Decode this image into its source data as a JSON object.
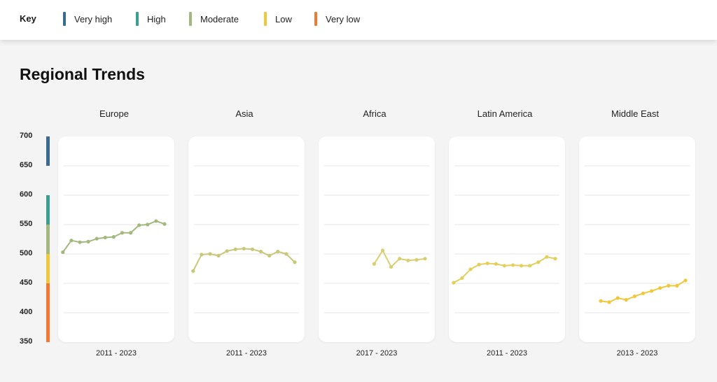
{
  "key": {
    "title": "Key",
    "levels": [
      {
        "label": "Very high",
        "color": "#3a6b8f"
      },
      {
        "label": "High",
        "color": "#3a9e93"
      },
      {
        "label": "Moderate",
        "color": "#a3b87f"
      },
      {
        "label": "Low",
        "color": "#f0c83c"
      },
      {
        "label": "Very low",
        "color": "#f07a32"
      }
    ]
  },
  "page": {
    "title": "Regional Trends"
  },
  "chart_data": {
    "type": "line",
    "ylim": [
      350,
      700
    ],
    "yticks": [
      700,
      650,
      600,
      550,
      500,
      450,
      400,
      350
    ],
    "grid": true,
    "color_bands": [
      {
        "level": "Very high",
        "from": 650,
        "to": 700,
        "color": "#3a6b8f"
      },
      {
        "level": "High",
        "from": 550,
        "to": 600,
        "color": "#3a9e93"
      },
      {
        "level": "Moderate",
        "from": 500,
        "to": 550,
        "color": "#a3b87f"
      },
      {
        "level": "Low",
        "from": 450,
        "to": 500,
        "color": "#f0c83c"
      },
      {
        "level": "Very low",
        "from": 350,
        "to": 450,
        "color": "#f07a32"
      }
    ],
    "panels": [
      {
        "region": "Europe",
        "period": "2011 - 2023",
        "color": "#a3b87f",
        "values": [
          503,
          523,
          520,
          521,
          526,
          528,
          529,
          536,
          536,
          549,
          550,
          556,
          551
        ]
      },
      {
        "region": "Asia",
        "period": "2011 - 2023",
        "color": "#c9c77a",
        "values": [
          471,
          499,
          500,
          497,
          505,
          508,
          509,
          508,
          504,
          497,
          504,
          500,
          486
        ]
      },
      {
        "region": "Africa",
        "period": "2017 - 2023",
        "color": "#d7cf72",
        "values": [
          483,
          506,
          478,
          492,
          489,
          490,
          492
        ]
      },
      {
        "region": "Latin America",
        "period": "2011 - 2023",
        "color": "#e3cf5e",
        "values": [
          451,
          459,
          474,
          482,
          484,
          483,
          480,
          481,
          480,
          480,
          486,
          495,
          492
        ]
      },
      {
        "region": "Middle East",
        "period": "2013 - 2023",
        "color": "#f0c83c",
        "values": [
          420,
          418,
          425,
          422,
          428,
          433,
          437,
          442,
          446,
          446,
          455
        ]
      }
    ]
  }
}
